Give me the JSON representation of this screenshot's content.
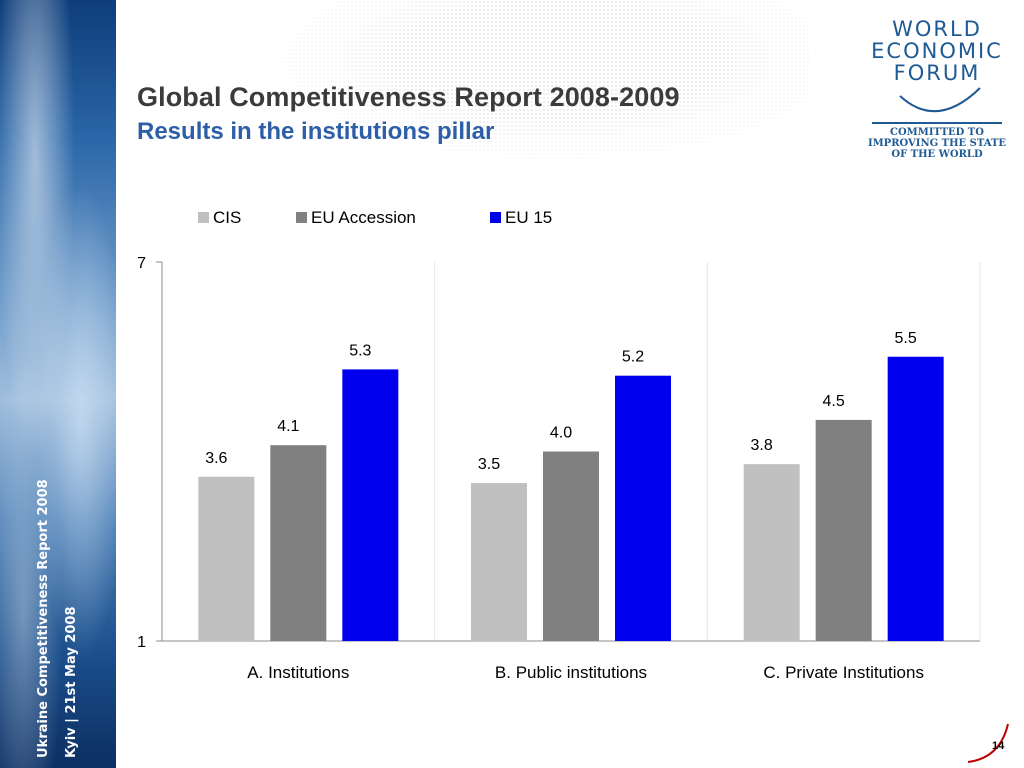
{
  "slide": {
    "title": "Global Competitiveness Report 2008-2009",
    "subtitle": "Results in the institutions pillar",
    "page_number": "14",
    "side_text_1": "Ukraine Competitiveness Report 2008",
    "side_text_2": "Kyiv | 21st May 2008"
  },
  "logo": {
    "line1": "WORLD",
    "line2": "ECONOMIC",
    "line3": "FORUM",
    "tagline1": "COMMITTED TO",
    "tagline2": "IMPROVING THE STATE",
    "tagline3": "OF THE WORLD"
  },
  "chart_data": {
    "type": "bar",
    "categories": [
      "A. Institutions",
      "B. Public institutions",
      "C. Private Institutions"
    ],
    "series": [
      {
        "name": "CIS",
        "values": [
          3.6,
          3.5,
          3.8
        ],
        "color": "#c0c0c0"
      },
      {
        "name": "EU Accession",
        "values": [
          4.1,
          4.0,
          4.5
        ],
        "color": "#808080"
      },
      {
        "name": "EU 15",
        "values": [
          5.3,
          5.2,
          5.5
        ],
        "color": "#0000ee"
      }
    ],
    "ylim": [
      1,
      7
    ],
    "yticks": [
      "1",
      "7"
    ],
    "legend": "top",
    "grid": false
  }
}
